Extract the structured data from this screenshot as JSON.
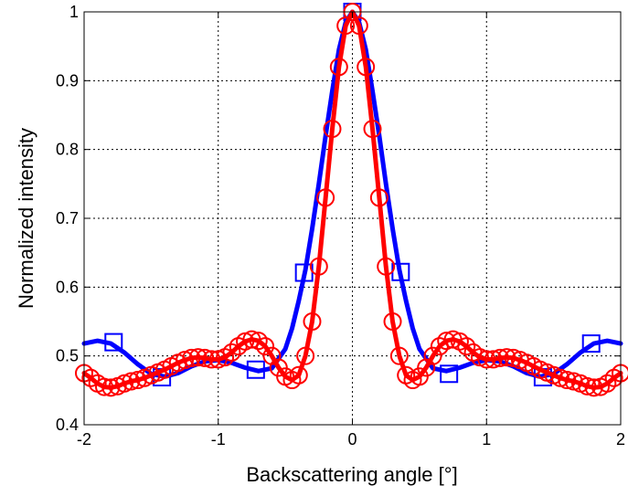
{
  "chart_data": {
    "type": "line",
    "title": "",
    "xlabel": "Backscattering angle [°]",
    "ylabel": "Normalized intensity",
    "xlim": [
      -2,
      2
    ],
    "ylim": [
      0.4,
      1
    ],
    "xticks": [
      -2,
      -1,
      0,
      1,
      2
    ],
    "xtick_labels": [
      "-2",
      "-1",
      "0",
      "1",
      "2"
    ],
    "yticks": [
      0.4,
      0.5,
      0.6,
      0.7,
      0.8,
      0.9,
      1
    ],
    "ytick_labels": [
      "0.4",
      "0.5",
      "0.6",
      "0.7",
      "0.8",
      "0.9",
      "1"
    ],
    "grid": true,
    "series": [
      {
        "color": "#0000ff",
        "marker": "square",
        "x": [
          -2.0,
          -1.9,
          -1.8,
          -1.7,
          -1.6,
          -1.5,
          -1.4,
          -1.3,
          -1.2,
          -1.1,
          -1.0,
          -0.9,
          -0.8,
          -0.7,
          -0.6,
          -0.5,
          -0.45,
          -0.4,
          -0.35,
          -0.3,
          -0.25,
          -0.2,
          -0.15,
          -0.1,
          -0.05,
          0.0,
          0.05,
          0.1,
          0.15,
          0.2,
          0.25,
          0.3,
          0.35,
          0.4,
          0.45,
          0.5,
          0.6,
          0.7,
          0.8,
          0.9,
          1.0,
          1.1,
          1.2,
          1.3,
          1.4,
          1.5,
          1.6,
          1.7,
          1.8,
          1.9,
          2.0
        ],
        "y": [
          0.518,
          0.522,
          0.518,
          0.505,
          0.488,
          0.474,
          0.47,
          0.475,
          0.485,
          0.492,
          0.494,
          0.49,
          0.483,
          0.478,
          0.482,
          0.51,
          0.54,
          0.58,
          0.625,
          0.685,
          0.75,
          0.82,
          0.885,
          0.945,
          0.985,
          1.0,
          0.985,
          0.945,
          0.885,
          0.82,
          0.75,
          0.685,
          0.625,
          0.58,
          0.54,
          0.51,
          0.482,
          0.478,
          0.483,
          0.49,
          0.494,
          0.492,
          0.485,
          0.475,
          0.47,
          0.474,
          0.488,
          0.505,
          0.518,
          0.522,
          0.518
        ],
        "marker_x": [
          -1.78,
          -1.42,
          -0.72,
          -0.36,
          0.0,
          0.36,
          0.72,
          1.42,
          1.78
        ],
        "marker_y": [
          0.52,
          0.469,
          0.48,
          0.621,
          1.0,
          0.622,
          0.474,
          0.469,
          0.518
        ]
      },
      {
        "color": "#ff0000",
        "marker": "circle",
        "x": [
          -2.0,
          -1.95,
          -1.9,
          -1.85,
          -1.8,
          -1.75,
          -1.7,
          -1.65,
          -1.6,
          -1.55,
          -1.5,
          -1.45,
          -1.4,
          -1.35,
          -1.3,
          -1.25,
          -1.2,
          -1.15,
          -1.1,
          -1.05,
          -1.0,
          -0.95,
          -0.9,
          -0.85,
          -0.8,
          -0.75,
          -0.7,
          -0.65,
          -0.6,
          -0.55,
          -0.5,
          -0.45,
          -0.4,
          -0.35,
          -0.3,
          -0.25,
          -0.2,
          -0.15,
          -0.1,
          -0.05,
          0.0,
          0.05,
          0.1,
          0.15,
          0.2,
          0.25,
          0.3,
          0.35,
          0.4,
          0.45,
          0.5,
          0.55,
          0.6,
          0.65,
          0.7,
          0.75,
          0.8,
          0.85,
          0.9,
          0.95,
          1.0,
          1.05,
          1.1,
          1.15,
          1.2,
          1.25,
          1.3,
          1.35,
          1.4,
          1.45,
          1.5,
          1.55,
          1.6,
          1.65,
          1.7,
          1.75,
          1.8,
          1.85,
          1.9,
          1.95,
          2.0
        ],
        "y": [
          0.475,
          0.468,
          0.46,
          0.455,
          0.454,
          0.456,
          0.46,
          0.463,
          0.465,
          0.468,
          0.472,
          0.476,
          0.48,
          0.485,
          0.49,
          0.494,
          0.497,
          0.498,
          0.497,
          0.495,
          0.495,
          0.498,
          0.505,
          0.514,
          0.521,
          0.524,
          0.522,
          0.514,
          0.5,
          0.483,
          0.47,
          0.465,
          0.472,
          0.5,
          0.55,
          0.63,
          0.73,
          0.83,
          0.92,
          0.98,
          1.0,
          0.98,
          0.92,
          0.83,
          0.73,
          0.63,
          0.55,
          0.5,
          0.472,
          0.465,
          0.47,
          0.483,
          0.5,
          0.514,
          0.522,
          0.524,
          0.521,
          0.514,
          0.505,
          0.498,
          0.495,
          0.495,
          0.497,
          0.498,
          0.497,
          0.494,
          0.49,
          0.485,
          0.48,
          0.476,
          0.472,
          0.468,
          0.465,
          0.463,
          0.46,
          0.456,
          0.454,
          0.455,
          0.46,
          0.468,
          0.475
        ],
        "marker_x": [
          -2.0,
          -1.95,
          -1.9,
          -1.85,
          -1.8,
          -1.75,
          -1.7,
          -1.65,
          -1.6,
          -1.55,
          -1.5,
          -1.45,
          -1.4,
          -1.35,
          -1.3,
          -1.25,
          -1.2,
          -1.15,
          -1.1,
          -1.05,
          -1.0,
          -0.95,
          -0.9,
          -0.85,
          -0.8,
          -0.75,
          -0.7,
          -0.65,
          -0.6,
          -0.55,
          -0.5,
          -0.45,
          -0.4,
          -0.35,
          -0.3,
          -0.25,
          -0.2,
          -0.15,
          -0.1,
          -0.05,
          0.0,
          0.05,
          0.1,
          0.15,
          0.2,
          0.25,
          0.3,
          0.35,
          0.4,
          0.45,
          0.5,
          0.55,
          0.6,
          0.65,
          0.7,
          0.75,
          0.8,
          0.85,
          0.9,
          0.95,
          1.0,
          1.05,
          1.1,
          1.15,
          1.2,
          1.25,
          1.3,
          1.35,
          1.4,
          1.45,
          1.5,
          1.55,
          1.6,
          1.65,
          1.7,
          1.75,
          1.8,
          1.85,
          1.9,
          1.95,
          2.0
        ],
        "marker_y": [
          0.475,
          0.468,
          0.46,
          0.455,
          0.454,
          0.456,
          0.46,
          0.463,
          0.465,
          0.468,
          0.472,
          0.476,
          0.48,
          0.485,
          0.49,
          0.494,
          0.497,
          0.498,
          0.497,
          0.495,
          0.495,
          0.498,
          0.505,
          0.514,
          0.521,
          0.524,
          0.522,
          0.514,
          0.5,
          0.483,
          0.47,
          0.465,
          0.472,
          0.5,
          0.55,
          0.63,
          0.73,
          0.83,
          0.92,
          0.98,
          1.0,
          0.98,
          0.92,
          0.83,
          0.73,
          0.63,
          0.55,
          0.5,
          0.472,
          0.465,
          0.47,
          0.483,
          0.5,
          0.514,
          0.522,
          0.524,
          0.521,
          0.514,
          0.505,
          0.498,
          0.495,
          0.495,
          0.497,
          0.498,
          0.497,
          0.494,
          0.49,
          0.485,
          0.48,
          0.476,
          0.472,
          0.468,
          0.465,
          0.463,
          0.46,
          0.456,
          0.454,
          0.455,
          0.46,
          0.468,
          0.475
        ]
      }
    ]
  }
}
